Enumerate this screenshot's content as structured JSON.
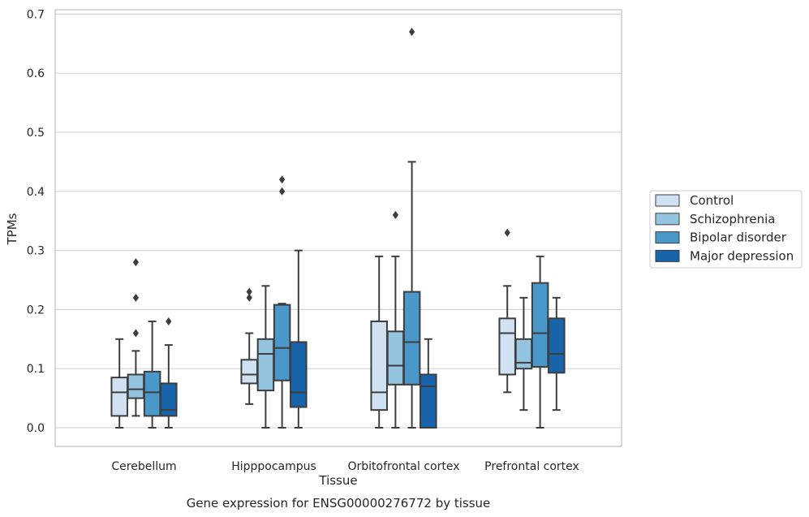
{
  "chart_data": {
    "type": "box",
    "caption": "Gene expression for ENSG00000276772 by tissue",
    "xlabel": "Tissue",
    "ylabel": "TPMs",
    "ylim": [
      -0.03,
      0.705
    ],
    "yticks": [
      "0.0",
      "0.1",
      "0.2",
      "0.3",
      "0.4",
      "0.5",
      "0.6",
      "0.7"
    ],
    "grid": "horizontal",
    "legend_position": "right",
    "categories": [
      "Cerebellum",
      "Hipppocampus",
      "Orbitofrontal cortex",
      "Prefrontal cortex"
    ],
    "series": [
      {
        "name": "Control",
        "color": "#d0e1f2",
        "boxes": [
          {
            "whisker_low": 0.0,
            "q1": 0.02,
            "median": 0.06,
            "q3": 0.085,
            "whisker_high": 0.15,
            "outliers": []
          },
          {
            "whisker_low": 0.04,
            "q1": 0.075,
            "median": 0.09,
            "q3": 0.115,
            "whisker_high": 0.16,
            "outliers": [
              0.22,
              0.23
            ]
          },
          {
            "whisker_low": 0.0,
            "q1": 0.03,
            "median": 0.06,
            "q3": 0.18,
            "whisker_high": 0.29,
            "outliers": []
          },
          {
            "whisker_low": 0.06,
            "q1": 0.09,
            "median": 0.16,
            "q3": 0.185,
            "whisker_high": 0.24,
            "outliers": [
              0.33
            ]
          }
        ]
      },
      {
        "name": "Schizophrenia",
        "color": "#94c4df",
        "boxes": [
          {
            "whisker_low": 0.02,
            "q1": 0.05,
            "median": 0.065,
            "q3": 0.09,
            "whisker_high": 0.13,
            "outliers": [
              0.16,
              0.22,
              0.28
            ]
          },
          {
            "whisker_low": 0.0,
            "q1": 0.063,
            "median": 0.125,
            "q3": 0.15,
            "whisker_high": 0.24,
            "outliers": []
          },
          {
            "whisker_low": 0.0,
            "q1": 0.073,
            "median": 0.105,
            "q3": 0.163,
            "whisker_high": 0.29,
            "outliers": [
              0.36
            ]
          },
          {
            "whisker_low": 0.03,
            "q1": 0.1,
            "median": 0.11,
            "q3": 0.15,
            "whisker_high": 0.22,
            "outliers": []
          }
        ]
      },
      {
        "name": "Bipolar disorder",
        "color": "#4a98c9",
        "boxes": [
          {
            "whisker_low": 0.0,
            "q1": 0.02,
            "median": 0.06,
            "q3": 0.095,
            "whisker_high": 0.18,
            "outliers": []
          },
          {
            "whisker_low": 0.0,
            "q1": 0.08,
            "median": 0.135,
            "q3": 0.208,
            "whisker_high": 0.21,
            "outliers": [
              0.4,
              0.42
            ]
          },
          {
            "whisker_low": 0.0,
            "q1": 0.073,
            "median": 0.145,
            "q3": 0.23,
            "whisker_high": 0.45,
            "outliers": [
              0.67
            ]
          },
          {
            "whisker_low": 0.0,
            "q1": 0.103,
            "median": 0.16,
            "q3": 0.245,
            "whisker_high": 0.29,
            "outliers": []
          }
        ]
      },
      {
        "name": "Major depression",
        "color": "#1764ab",
        "boxes": [
          {
            "whisker_low": 0.0,
            "q1": 0.02,
            "median": 0.03,
            "q3": 0.075,
            "whisker_high": 0.14,
            "outliers": [
              0.18
            ]
          },
          {
            "whisker_low": 0.0,
            "q1": 0.035,
            "median": 0.06,
            "q3": 0.145,
            "whisker_high": 0.3,
            "outliers": []
          },
          {
            "whisker_low": 0.0,
            "q1": 0.0,
            "median": 0.07,
            "q3": 0.09,
            "whisker_high": 0.15,
            "outliers": []
          },
          {
            "whisker_low": 0.03,
            "q1": 0.093,
            "median": 0.125,
            "q3": 0.185,
            "whisker_high": 0.22,
            "outliers": []
          }
        ]
      }
    ]
  }
}
